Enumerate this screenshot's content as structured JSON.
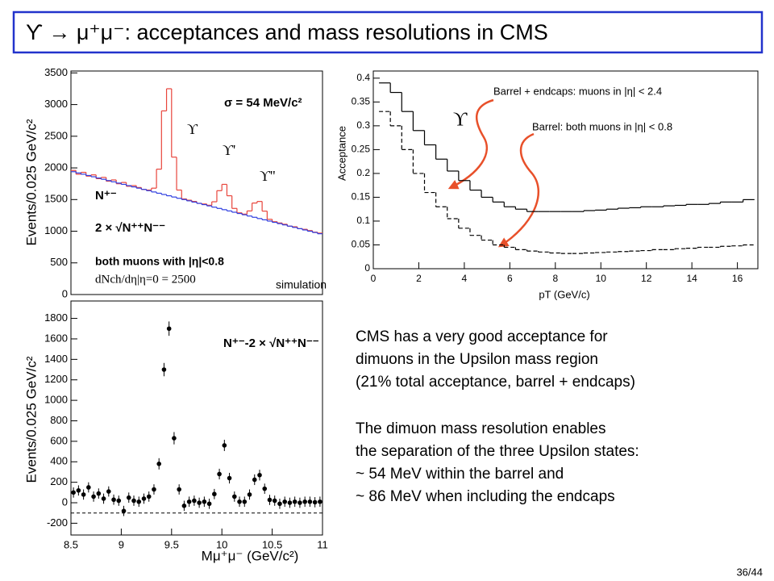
{
  "slide_title": "ϒ → μ⁺μ⁻: acceptances and mass resolutions in CMS",
  "page_number": "36/44",
  "text": [
    [
      "CMS has a very good acceptance for",
      "dimuons in the Upsilon mass region",
      "(21% total acceptance, barrel + endcaps)"
    ],
    [
      "The dimuon mass resolution enables",
      "the separation of the three Upsilon states:",
      "~ 54 MeV within the barrel and",
      "~ 86 MeV when including the endcaps"
    ]
  ],
  "chart_data": [
    {
      "type": "histogram",
      "ylabel": "Events/0.025 GeV/c²",
      "xlim": [
        8.5,
        11
      ],
      "ylim": [
        0,
        3530
      ],
      "yticks": [
        0,
        500,
        1000,
        1500,
        2000,
        2500,
        3000,
        3500
      ],
      "bins": [
        8.5,
        8.55,
        8.6,
        8.65,
        8.7,
        8.75,
        8.8,
        8.85,
        8.9,
        8.95,
        9,
        9.05,
        9.1,
        9.15,
        9.2,
        9.25,
        9.3,
        9.35,
        9.4,
        9.45,
        9.5,
        9.55,
        9.6,
        9.65,
        9.7,
        9.75,
        9.8,
        9.85,
        9.9,
        9.95,
        10,
        10.05,
        10.1,
        10.15,
        10.2,
        10.25,
        10.3,
        10.35,
        10.4,
        10.45,
        10.5,
        10.55,
        10.6,
        10.65,
        10.7,
        10.75,
        10.8,
        10.85,
        10.9,
        10.95,
        11
      ],
      "series": [
        {
          "name": "N⁺⁻",
          "color": "#e8453c",
          "values": [
            1960,
            1900,
            1930,
            1870,
            1890,
            1830,
            1850,
            1790,
            1810,
            1750,
            1770,
            1710,
            1720,
            1690,
            1660,
            1650,
            1680,
            1980,
            2900,
            3250,
            2170,
            1650,
            1510,
            1490,
            1470,
            1440,
            1430,
            1410,
            1465,
            1640,
            1740,
            1560,
            1360,
            1290,
            1270,
            1320,
            1445,
            1470,
            1317,
            1188,
            1150,
            1130,
            1110,
            1080,
            1070,
            1040,
            1030,
            1010,
            985,
            970
          ]
        },
        {
          "name": "2 × √N⁺⁺N⁻⁻",
          "color": "#2f3fe0",
          "values": [
            1940,
            1920,
            1900,
            1880,
            1860,
            1840,
            1820,
            1800,
            1780,
            1760,
            1740,
            1720,
            1700,
            1680,
            1660,
            1640,
            1620,
            1600,
            1580,
            1560,
            1540,
            1520,
            1500,
            1480,
            1460,
            1440,
            1420,
            1400,
            1380,
            1360,
            1340,
            1320,
            1300,
            1280,
            1260,
            1240,
            1220,
            1200,
            1180,
            1160,
            1140,
            1120,
            1100,
            1080,
            1060,
            1040,
            1020,
            1000,
            980,
            960
          ]
        }
      ],
      "annotations": [
        {
          "text": "σ = 54 MeV/c²",
          "color": "#2f3fe0"
        },
        {
          "text": "ϒ"
        },
        {
          "text": "ϒ'"
        },
        {
          "text": "ϒ''"
        },
        {
          "text": "both muons with |η|<0.8"
        },
        {
          "text": "dNch/dη|η=0 = 2500"
        },
        {
          "text": "simulation",
          "color": "#2f3fe0"
        }
      ]
    },
    {
      "type": "scatter",
      "ylabel": "Events/0.025 GeV/c²",
      "xlabel": "Mμ⁺μ⁻ (GeV/c²)",
      "xlim": [
        8.5,
        11
      ],
      "ylim": [
        -315,
        1970
      ],
      "xticks": [
        8.5,
        9,
        9.5,
        10,
        10.5,
        11
      ],
      "yticks": [
        -200,
        0,
        200,
        400,
        600,
        800,
        1000,
        1200,
        1400,
        1600,
        1800
      ],
      "reference_line": -100,
      "x": [
        8.525,
        8.575,
        8.625,
        8.675,
        8.725,
        8.775,
        8.825,
        8.875,
        8.925,
        8.975,
        9.025,
        9.075,
        9.125,
        9.175,
        9.225,
        9.275,
        9.325,
        9.375,
        9.425,
        9.475,
        9.525,
        9.575,
        9.625,
        9.675,
        9.725,
        9.775,
        9.825,
        9.875,
        9.925,
        9.975,
        10.025,
        10.075,
        10.125,
        10.175,
        10.225,
        10.275,
        10.325,
        10.375,
        10.425,
        10.475,
        10.525,
        10.575,
        10.625,
        10.675,
        10.725,
        10.775,
        10.825,
        10.875,
        10.925,
        10.975
      ],
      "series": [
        {
          "name": "N⁺⁻-2 × √N⁺⁺N⁻⁻",
          "color": "#000000",
          "values": [
            100,
            120,
            80,
            150,
            60,
            90,
            40,
            110,
            30,
            20,
            -80,
            50,
            20,
            10,
            40,
            60,
            130,
            380,
            1300,
            1700,
            630,
            130,
            -30,
            10,
            20,
            0,
            10,
            -10,
            85,
            280,
            560,
            240,
            60,
            10,
            10,
            80,
            225,
            270,
            137,
            28,
            20,
            -10,
            10,
            0,
            10,
            0,
            10,
            10,
            5,
            10
          ],
          "errors": [
            50,
            50,
            50,
            50,
            50,
            50,
            50,
            50,
            50,
            50,
            50,
            50,
            50,
            50,
            50,
            50,
            50,
            55,
            65,
            70,
            60,
            50,
            50,
            50,
            50,
            50,
            50,
            50,
            50,
            52,
            55,
            52,
            50,
            50,
            50,
            50,
            52,
            52,
            50,
            50,
            50,
            50,
            50,
            50,
            50,
            50,
            50,
            50,
            50,
            50
          ]
        }
      ]
    },
    {
      "type": "histogram",
      "xlabel": "pT (GeV/c)",
      "ylabel": "Acceptance",
      "xlim": [
        0,
        16.9
      ],
      "ylim": [
        0,
        0.415
      ],
      "xticks": [
        0,
        2,
        4,
        6,
        8,
        10,
        12,
        14,
        16
      ],
      "yticks": [
        0,
        0.05,
        0.1,
        0.15,
        0.2,
        0.25,
        0.3,
        0.35,
        0.4
      ],
      "bins": [
        0.25,
        0.75,
        1.25,
        1.75,
        2.25,
        2.75,
        3.25,
        3.75,
        4.25,
        4.75,
        5.25,
        5.75,
        6.25,
        6.75,
        7.25,
        7.75,
        8.25,
        8.75,
        9.25,
        9.75,
        10.25,
        10.75,
        11.25,
        11.75,
        12.25,
        12.75,
        13.25,
        13.75,
        14.25,
        14.75,
        15.25,
        15.75,
        16.25,
        16.75
      ],
      "series": [
        {
          "name": "Barrel + endcaps: muons in |η| < 2.4",
          "color": "#000000",
          "line_style": "solid",
          "values": [
            0.39,
            0.37,
            0.33,
            0.29,
            0.26,
            0.23,
            0.205,
            0.185,
            0.165,
            0.15,
            0.14,
            0.13,
            0.125,
            0.12,
            0.12,
            0.12,
            0.12,
            0.12,
            0.122,
            0.123,
            0.125,
            0.127,
            0.128,
            0.13,
            0.13,
            0.132,
            0.133,
            0.135,
            0.135,
            0.137,
            0.14,
            0.14,
            0.145
          ]
        },
        {
          "name": "Barrel: both muons in |η| < 0.8",
          "color": "#000000",
          "line_style": "dashed",
          "values": [
            0.33,
            0.3,
            0.25,
            0.2,
            0.16,
            0.13,
            0.105,
            0.085,
            0.07,
            0.06,
            0.05,
            0.045,
            0.04,
            0.037,
            0.035,
            0.033,
            0.032,
            0.032,
            0.033,
            0.034,
            0.035,
            0.036,
            0.037,
            0.038,
            0.04,
            0.04,
            0.042,
            0.043,
            0.045,
            0.045,
            0.047,
            0.048,
            0.05
          ]
        }
      ],
      "annotations": [
        {
          "text": "ϒ"
        }
      ]
    }
  ]
}
